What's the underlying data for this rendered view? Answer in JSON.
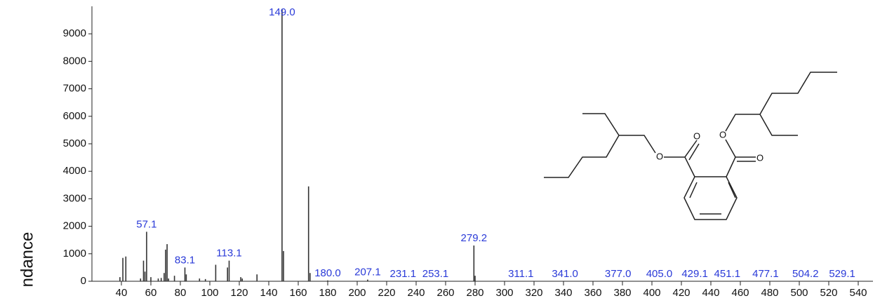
{
  "chart_data": {
    "type": "stem",
    "y_axis_label": "ndance",
    "x": [
      39,
      41,
      43,
      53,
      55,
      56,
      57.1,
      60,
      65,
      67,
      69,
      70,
      71,
      72,
      76,
      83.1,
      84,
      93,
      97,
      104,
      112,
      113.1,
      121,
      122,
      132,
      149,
      150,
      167,
      168,
      180,
      207.1,
      279.2,
      280
    ],
    "values": [
      150,
      850,
      900,
      100,
      750,
      350,
      1800,
      150,
      100,
      120,
      300,
      1150,
      1350,
      100,
      200,
      500,
      250,
      100,
      80,
      600,
      500,
      750,
      150,
      100,
      250,
      9900,
      1100,
      3450,
      300,
      30,
      60,
      1300,
      200
    ],
    "color": "#333333",
    "peak_labels": [
      {
        "x": 57.1,
        "label": "57.1"
      },
      {
        "x": 83.1,
        "label": "83.1"
      },
      {
        "x": 113.1,
        "label": "113.1"
      },
      {
        "x": 149,
        "label": "149.0"
      },
      {
        "x": 180,
        "label": "180.0"
      },
      {
        "x": 207.1,
        "label": "207.1"
      },
      {
        "x": 231.1,
        "label": "231.1"
      },
      {
        "x": 253.1,
        "label": "253.1"
      },
      {
        "x": 279.2,
        "label": "279.2"
      },
      {
        "x": 311.1,
        "label": "311.1"
      },
      {
        "x": 341,
        "label": "341.0"
      },
      {
        "x": 377,
        "label": "377.0"
      },
      {
        "x": 405,
        "label": "405.0"
      },
      {
        "x": 429.1,
        "label": "429.1"
      },
      {
        "x": 451.1,
        "label": "451.1"
      },
      {
        "x": 477.1,
        "label": "477.1"
      },
      {
        "x": 504.2,
        "label": "504.2"
      },
      {
        "x": 529.1,
        "label": "529.1"
      }
    ],
    "label_color": "#2a3ad8",
    "xlim": [
      20,
      550
    ],
    "xticks": [
      40,
      60,
      80,
      100,
      120,
      140,
      160,
      180,
      200,
      220,
      240,
      260,
      280,
      300,
      320,
      340,
      360,
      380,
      400,
      420,
      440,
      460,
      480,
      500,
      520,
      540
    ],
    "ylim": [
      0,
      10000
    ],
    "yticks": [
      0,
      1000,
      2000,
      3000,
      4000,
      5000,
      6000,
      7000,
      8000,
      9000
    ]
  },
  "structure": {
    "atoms": [
      "O",
      "O",
      "O",
      "O"
    ]
  }
}
